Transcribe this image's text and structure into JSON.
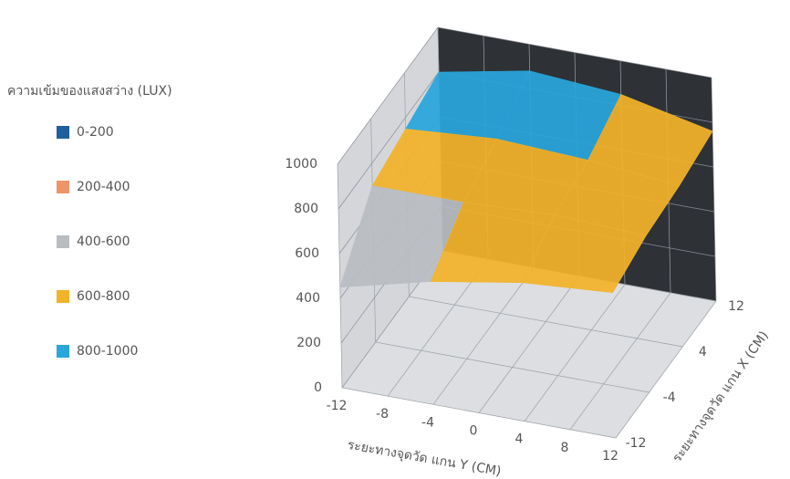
{
  "chart_data": {
    "type": "surface",
    "legend_title": "ความเข้มของแสงสว่าง (LUX)",
    "bands": [
      {
        "label": "0-200",
        "color": "#1f5f9e"
      },
      {
        "label": "200-400",
        "color": "#ef9468"
      },
      {
        "label": "400-600",
        "color": "#b9bdc2"
      },
      {
        "label": "600-800",
        "color": "#f2b32a"
      },
      {
        "label": "800-1000",
        "color": "#29a6dc"
      }
    ],
    "x_axis_label": "ระยะทางจุดวัด แกน Y (CM)",
    "y_axis_label": "ระยะทางจุดวัด แกน X (CM)",
    "x": [
      -12,
      -4,
      4,
      12
    ],
    "y": [
      -12,
      -4,
      4,
      12
    ],
    "z": [
      [
        450,
        550,
        620,
        650
      ],
      [
        700,
        700,
        720,
        700
      ],
      [
        750,
        780,
        760,
        720
      ],
      [
        800,
        880,
        850,
        760
      ]
    ],
    "xlim": [
      -12,
      12
    ],
    "xticks": [
      -12,
      -8,
      -4,
      0,
      4,
      8,
      12
    ],
    "ylim": [
      -12,
      12
    ],
    "yticks": [
      -12,
      -4,
      4,
      12
    ],
    "zlim": [
      0,
      1000
    ],
    "zticks": [
      0,
      200,
      400,
      600,
      800,
      1000
    ]
  }
}
